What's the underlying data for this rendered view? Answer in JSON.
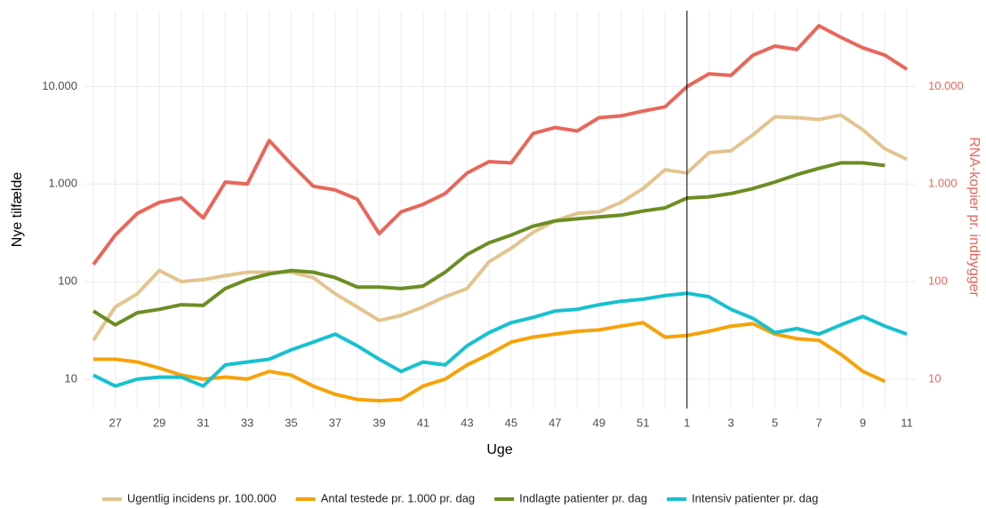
{
  "chart_data": {
    "type": "line",
    "x_label": "Uge",
    "y_label": "Nye tilfælde",
    "y2_label": "RNA-kopier pr. indbygger",
    "log_scale": true,
    "grid": true,
    "legend": "bottom",
    "categories": [
      null,
      27,
      null,
      29,
      null,
      31,
      null,
      33,
      null,
      35,
      null,
      37,
      null,
      39,
      null,
      41,
      null,
      43,
      null,
      45,
      null,
      47,
      null,
      49,
      null,
      51,
      null,
      1,
      null,
      3,
      null,
      5,
      null,
      7,
      null,
      9,
      null,
      11
    ],
    "vline": 1,
    "ylim": [
      5,
      60000
    ],
    "yticks": [
      10,
      100,
      {
        "value": 1000,
        "label": "1.000"
      },
      {
        "value": 10000,
        "label": "10.000"
      }
    ],
    "y2lim": [
      5,
      60000
    ],
    "y2ticks": [
      10,
      100,
      {
        "value": 1000,
        "label": "1.000"
      },
      {
        "value": 10000,
        "label": "10.000"
      }
    ],
    "y2color": "#e8675a",
    "series": [
      {
        "name": "RNA-kopier pr. indbygger",
        "color": "#e8675a",
        "axis": "y2",
        "legend": false,
        "values": [
          150,
          300,
          500,
          650,
          720,
          450,
          1050,
          1000,
          2800,
          1600,
          950,
          870,
          700,
          310,
          520,
          620,
          800,
          1300,
          1700,
          1650,
          3300,
          3800,
          3500,
          4800,
          5000,
          5600,
          6200,
          10000,
          13500,
          13000,
          21000,
          26000,
          24000,
          42000,
          32000,
          25000,
          21000,
          15000
        ]
      },
      {
        "name": "Ugentlig incidens pr. 100.000",
        "color": "#e3c48f",
        "values": [
          25,
          55,
          75,
          130,
          100,
          105,
          115,
          125,
          125,
          125,
          110,
          75,
          55,
          40,
          45,
          55,
          70,
          85,
          160,
          220,
          320,
          420,
          500,
          520,
          650,
          900,
          1400,
          1300,
          2100,
          2200,
          3200,
          4900,
          4800,
          4600,
          5100,
          3600,
          2300,
          1800
        ]
      },
      {
        "name": "Antal testede pr. 1.000 pr. dag",
        "color": "#f5a30a",
        "values": [
          16,
          16,
          15,
          13,
          11,
          10,
          10.5,
          10,
          12,
          11,
          8.5,
          7,
          6.2,
          6,
          6.2,
          8.5,
          10,
          14,
          18,
          24,
          27,
          29,
          31,
          32,
          35,
          38,
          27,
          28,
          31,
          35,
          37,
          29,
          26,
          25,
          18,
          12,
          9.5,
          null
        ]
      },
      {
        "name": "Indlagte patienter pr. dag",
        "color": "#6b8e23",
        "values": [
          50,
          36,
          48,
          52,
          58,
          57,
          85,
          105,
          120,
          130,
          125,
          110,
          88,
          88,
          85,
          90,
          125,
          190,
          250,
          300,
          370,
          420,
          440,
          460,
          480,
          530,
          570,
          720,
          740,
          800,
          900,
          1050,
          1250,
          1450,
          1650,
          1650,
          1550,
          null
        ]
      },
      {
        "name": "Intensiv patienter pr. dag",
        "color": "#17c1cf",
        "values": [
          11,
          8.5,
          10,
          10.5,
          10.5,
          8.5,
          14,
          15,
          16,
          20,
          24,
          29,
          22,
          16,
          12,
          15,
          14,
          22,
          30,
          38,
          43,
          50,
          52,
          58,
          63,
          66,
          72,
          76,
          70,
          52,
          42,
          30,
          33,
          29,
          36,
          44,
          35,
          29
        ]
      }
    ]
  }
}
